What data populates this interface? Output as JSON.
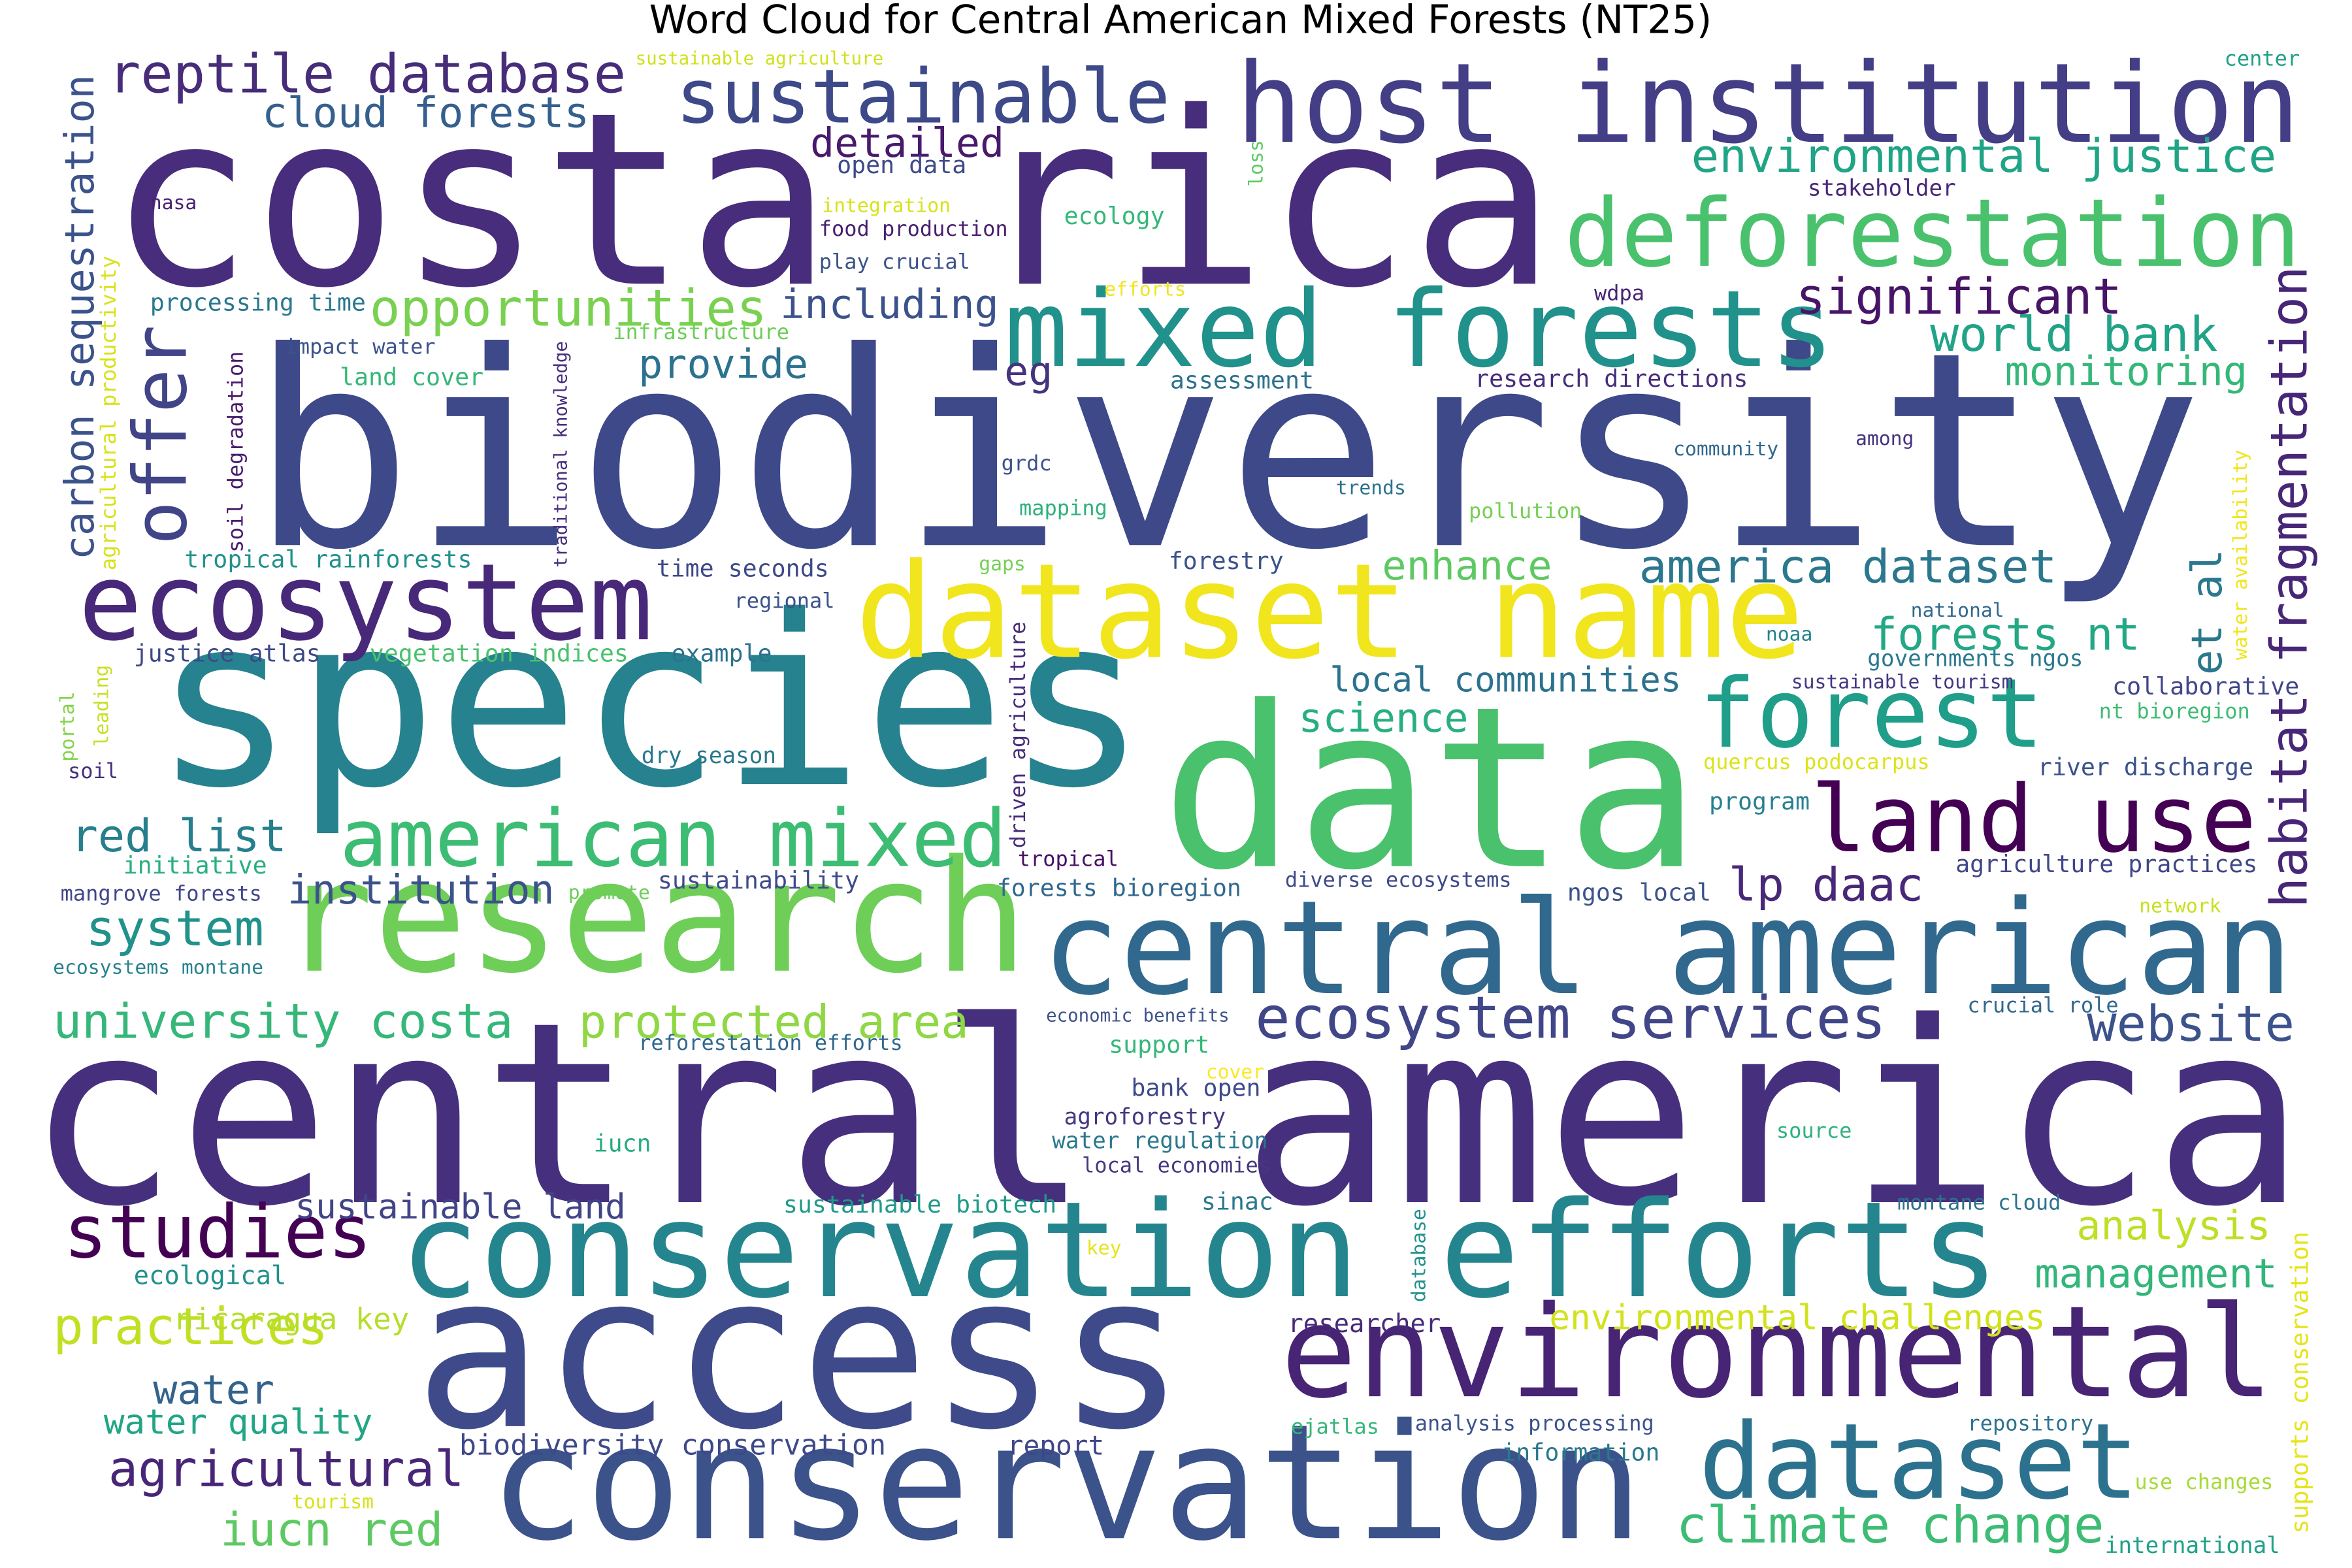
{
  "chart_data": {
    "type": "wordcloud",
    "title": "Word Cloud for Central American Mixed Forests (NT25)",
    "words": [
      {
        "text": "biodiversity",
        "weight": 181,
        "color": "#3e4989"
      },
      {
        "text": "costa rica",
        "weight": 161,
        "color": "#472d7b"
      },
      {
        "text": "central america",
        "weight": 169,
        "color": "#46307e"
      },
      {
        "text": "species",
        "weight": 158,
        "color": "#26828e"
      },
      {
        "text": "data",
        "weight": 150,
        "color": "#4ac16d"
      },
      {
        "text": "access",
        "weight": 143,
        "color": "#3e4a89"
      },
      {
        "text": "conservation",
        "weight": 107,
        "color": "#3b528b"
      },
      {
        "text": "conservation efforts",
        "weight": 89,
        "color": "#25858e"
      },
      {
        "text": "research",
        "weight": 104,
        "color": "#6ece58"
      },
      {
        "text": "central american",
        "weight": 87,
        "color": "#31688e"
      },
      {
        "text": "host institution",
        "weight": 74,
        "color": "#433e85"
      },
      {
        "text": "mixed forests",
        "weight": 71,
        "color": "#21918c"
      },
      {
        "text": "dataset name",
        "weight": 88,
        "color": "#f1e51d"
      },
      {
        "text": "environmental",
        "weight": 85,
        "color": "#482475"
      },
      {
        "text": "deforestation",
        "weight": 63,
        "color": "#4ac16d"
      },
      {
        "text": "ecosystem",
        "weight": 71,
        "color": "#482878"
      },
      {
        "text": "forest",
        "weight": 64,
        "color": "#1f9e89"
      },
      {
        "text": "land use",
        "weight": 62,
        "color": "#440154"
      },
      {
        "text": "american mixed",
        "weight": 53,
        "color": "#3dbc74"
      },
      {
        "text": "dataset",
        "weight": 70,
        "color": "#2c728e"
      },
      {
        "text": "sustainable",
        "weight": 50,
        "color": "#3e4989"
      },
      {
        "text": "studies",
        "weight": 49,
        "color": "#440154"
      },
      {
        "text": "reptile database",
        "weight": 36,
        "color": "#472c7a"
      },
      {
        "text": "cloud forests",
        "weight": 28,
        "color": "#355f8d"
      },
      {
        "text": "detailed",
        "weight": 27,
        "color": "#481a6c"
      },
      {
        "text": "opportunities",
        "weight": 34,
        "color": "#7ad151"
      },
      {
        "text": "including",
        "weight": 27,
        "color": "#3b528b"
      },
      {
        "text": "provide",
        "weight": 27,
        "color": "#2c728e"
      },
      {
        "text": "offer",
        "weight": 49,
        "color": "#414487"
      },
      {
        "text": "carbon sequestration",
        "weight": 27,
        "color": "#3b528b"
      },
      {
        "text": "habitat fragmentation",
        "weight": 34,
        "color": "#482677"
      },
      {
        "text": "et al",
        "weight": 28,
        "color": "#2a788e"
      },
      {
        "text": "significant",
        "weight": 33,
        "color": "#481467"
      },
      {
        "text": "environmental justice",
        "weight": 31,
        "color": "#20a486"
      },
      {
        "text": "world bank",
        "weight": 32,
        "color": "#20a386"
      },
      {
        "text": "monitoring",
        "weight": 27,
        "color": "#35b779"
      },
      {
        "text": "eg",
        "weight": 27,
        "color": "#46337e"
      },
      {
        "text": "america dataset",
        "weight": 31,
        "color": "#2a778e"
      },
      {
        "text": "forests nt",
        "weight": 30,
        "color": "#22a884"
      },
      {
        "text": "enhance",
        "weight": 27,
        "color": "#5ec962"
      },
      {
        "text": "science",
        "weight": 27,
        "color": "#29af7f"
      },
      {
        "text": "local communities",
        "weight": 23,
        "color": "#2c728e"
      },
      {
        "text": "lp daac",
        "weight": 31,
        "color": "#482878"
      },
      {
        "text": "red list",
        "weight": 30,
        "color": "#277f8e"
      },
      {
        "text": "institution",
        "weight": 27,
        "color": "#3b528b"
      },
      {
        "text": "system",
        "weight": 33,
        "color": "#21918c"
      },
      {
        "text": "university costa",
        "weight": 32,
        "color": "#35b779"
      },
      {
        "text": "protected area",
        "weight": 31,
        "color": "#8fd744"
      },
      {
        "text": "ecosystem services",
        "weight": 39,
        "color": "#404688"
      },
      {
        "text": "website",
        "weight": 33,
        "color": "#3b528b"
      },
      {
        "text": "sustainable land",
        "weight": 23,
        "color": "#414487"
      },
      {
        "text": "analysis",
        "weight": 27,
        "color": "#bddf26"
      },
      {
        "text": "management",
        "weight": 27,
        "color": "#32b67a"
      },
      {
        "text": "practices",
        "weight": 34,
        "color": "#c2df23"
      },
      {
        "text": "water",
        "weight": 27,
        "color": "#33638d"
      },
      {
        "text": "water quality",
        "weight": 23,
        "color": "#21a685"
      },
      {
        "text": "agricultural",
        "weight": 33,
        "color": "#482677"
      },
      {
        "text": "iucn red",
        "weight": 31,
        "color": "#5ec962"
      },
      {
        "text": "climate change",
        "weight": 34,
        "color": "#3dbc74"
      },
      {
        "text": "environmental challenges",
        "weight": 23,
        "color": "#d2e21b"
      },
      {
        "text": "biodiversity conservation",
        "weight": 19,
        "color": "#3e4989"
      },
      {
        "text": "report",
        "weight": 18,
        "color": "#404688"
      },
      {
        "text": "information",
        "weight": 16,
        "color": "#2a788e"
      },
      {
        "text": "repository",
        "weight": 14,
        "color": "#2c728e"
      },
      {
        "text": "analysis processing",
        "weight": 14,
        "color": "#3b528b"
      },
      {
        "text": "ejatlas",
        "weight": 14,
        "color": "#35b779"
      },
      {
        "text": "use changes",
        "weight": 14,
        "color": "#a5db36"
      },
      {
        "text": "international",
        "weight": 15,
        "color": "#1fa187"
      },
      {
        "text": "tourism",
        "weight": 13,
        "color": "#d8e219"
      },
      {
        "text": "nicaragua key",
        "weight": 20,
        "color": "#b5de2b"
      },
      {
        "text": "ecological",
        "weight": 17,
        "color": "#21918c"
      },
      {
        "text": "key",
        "weight": 13,
        "color": "#e5e419"
      },
      {
        "text": "sustainable biotech",
        "weight": 16,
        "color": "#1f9a8a"
      },
      {
        "text": "sinac",
        "weight": 16,
        "color": "#2a788e"
      },
      {
        "text": "montane cloud",
        "weight": 14,
        "color": "#2c728e"
      },
      {
        "text": "database",
        "weight": 13,
        "color": "#21918c"
      },
      {
        "text": "researcher",
        "weight": 17,
        "color": "#472a7a"
      },
      {
        "text": "supports conservation",
        "weight": 16,
        "color": "#e5e419"
      },
      {
        "text": "source",
        "weight": 14,
        "color": "#2db27d"
      },
      {
        "text": "iucn",
        "weight": 16,
        "color": "#27ad81"
      },
      {
        "text": "agroforestry",
        "weight": 15,
        "color": "#453781"
      },
      {
        "text": "water regulation",
        "weight": 15,
        "color": "#2a788e"
      },
      {
        "text": "local economies",
        "weight": 14,
        "color": "#453781"
      },
      {
        "text": "bank open",
        "weight": 16,
        "color": "#3e4a89"
      },
      {
        "text": "cover",
        "weight": 13,
        "color": "#fde725"
      },
      {
        "text": "support",
        "weight": 16,
        "color": "#35b779"
      },
      {
        "text": "economic benefits",
        "weight": 12,
        "color": "#3b528b"
      },
      {
        "text": "crucial role",
        "weight": 14,
        "color": "#31688e"
      },
      {
        "text": "reforestation efforts",
        "weight": 14,
        "color": "#31688e"
      },
      {
        "text": "network",
        "weight": 13,
        "color": "#c8e020"
      },
      {
        "text": "agriculture practices",
        "weight": 16,
        "color": "#404688"
      },
      {
        "text": "ngos local",
        "weight": 16,
        "color": "#3b528b"
      },
      {
        "text": "diverse ecosystems",
        "weight": 14,
        "color": "#3e4989"
      },
      {
        "text": "forests bioregion",
        "weight": 16,
        "color": "#31688e"
      },
      {
        "text": "tropical",
        "weight": 14,
        "color": "#471063"
      },
      {
        "text": "sustainability",
        "weight": 16,
        "color": "#3e4a89"
      },
      {
        "text": "promote",
        "weight": 13,
        "color": "#6ece58"
      },
      {
        "text": "mangrove forests",
        "weight": 14,
        "color": "#404688"
      },
      {
        "text": "initiative",
        "weight": 16,
        "color": "#29af7f"
      },
      {
        "text": "ecosystems montane",
        "weight": 13,
        "color": "#26828e"
      },
      {
        "text": "driven agriculture",
        "weight": 14,
        "color": "#472c7a"
      },
      {
        "text": "program",
        "weight": 16,
        "color": "#27808e"
      },
      {
        "text": "river discharge",
        "weight": 16,
        "color": "#3b528b"
      },
      {
        "text": "quercus podocarpus",
        "weight": 14,
        "color": "#dde318"
      },
      {
        "text": "nt bioregion",
        "weight": 14,
        "color": "#3dbc74"
      },
      {
        "text": "collaborative",
        "weight": 16,
        "color": "#404688"
      },
      {
        "text": "sustainable tourism",
        "weight": 13,
        "color": "#453781"
      },
      {
        "text": "governments ngos",
        "weight": 15,
        "color": "#2a788e"
      },
      {
        "text": "noaa",
        "weight": 13,
        "color": "#26828e"
      },
      {
        "text": "national",
        "weight": 13,
        "color": "#31688e"
      },
      {
        "text": "water availability",
        "weight": 13,
        "color": "#f1e51d"
      },
      {
        "text": "among",
        "weight": 13,
        "color": "#46337e"
      },
      {
        "text": "community",
        "weight": 13,
        "color": "#31688e"
      },
      {
        "text": "pollution",
        "weight": 14,
        "color": "#75d054"
      },
      {
        "text": "trends",
        "weight": 13,
        "color": "#2c728e"
      },
      {
        "text": "forestry",
        "weight": 16,
        "color": "#3b528b"
      },
      {
        "text": "research directions",
        "weight": 16,
        "color": "#472d7b"
      },
      {
        "text": "assessment",
        "weight": 16,
        "color": "#2c728e"
      },
      {
        "text": "wdpa",
        "weight": 14,
        "color": "#482475"
      },
      {
        "text": "stakeholder",
        "weight": 15,
        "color": "#482878"
      },
      {
        "text": "center",
        "weight": 14,
        "color": "#1fa187"
      },
      {
        "text": "loss",
        "weight": 13,
        "color": "#5ec962"
      },
      {
        "text": "ecology",
        "weight": 16,
        "color": "#35b779"
      },
      {
        "text": "efforts",
        "weight": 13,
        "color": "#f1e51d"
      },
      {
        "text": "play crucial",
        "weight": 14,
        "color": "#3b528b"
      },
      {
        "text": "food production",
        "weight": 14,
        "color": "#481f70"
      },
      {
        "text": "integration",
        "weight": 13,
        "color": "#d8e219"
      },
      {
        "text": "open data",
        "weight": 16,
        "color": "#3e4989"
      },
      {
        "text": "sustainable agriculture",
        "weight": 12,
        "color": "#d0e11c"
      },
      {
        "text": "nasa",
        "weight": 13,
        "color": "#482173"
      },
      {
        "text": "processing time",
        "weight": 16,
        "color": "#2a788e"
      },
      {
        "text": "infrastructure",
        "weight": 14,
        "color": "#6ece58"
      },
      {
        "text": "impact water",
        "weight": 14,
        "color": "#3b528b"
      },
      {
        "text": "land cover",
        "weight": 16,
        "color": "#35b779"
      },
      {
        "text": "soil degradation",
        "weight": 14,
        "color": "#481a6c"
      },
      {
        "text": "traditional knowledge",
        "weight": 12,
        "color": "#472d7b"
      },
      {
        "text": "agricultural productivity",
        "weight": 14,
        "color": "#d8e219"
      },
      {
        "text": "tropical rainforests",
        "weight": 16,
        "color": "#21918c"
      },
      {
        "text": "grdc",
        "weight": 14,
        "color": "#3b528b"
      },
      {
        "text": "mapping",
        "weight": 14,
        "color": "#2db27d"
      },
      {
        "text": "time seconds",
        "weight": 16,
        "color": "#3e4989"
      },
      {
        "text": "gaps",
        "weight": 13,
        "color": "#75d054"
      },
      {
        "text": "regional",
        "weight": 14,
        "color": "#3b528b"
      },
      {
        "text": "justice atlas",
        "weight": 16,
        "color": "#3e4989"
      },
      {
        "text": "vegetation indices",
        "weight": 16,
        "color": "#4ac16d"
      },
      {
        "text": "example",
        "weight": 16,
        "color": "#2c728e"
      },
      {
        "text": "leading",
        "weight": 13,
        "color": "#c8e020"
      },
      {
        "text": "portal",
        "weight": 13,
        "color": "#84d44b"
      },
      {
        "text": "soil",
        "weight": 14,
        "color": "#472d7b"
      },
      {
        "text": "dry season",
        "weight": 15,
        "color": "#2a788e"
      }
    ]
  }
}
